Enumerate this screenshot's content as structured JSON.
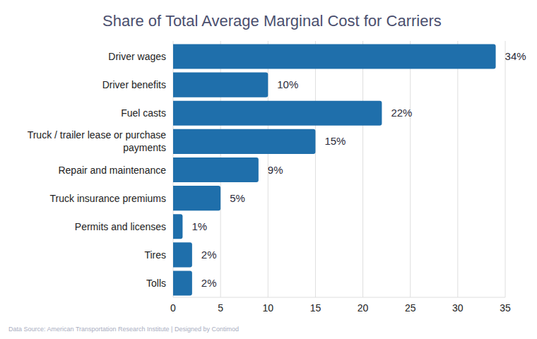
{
  "chart_data": {
    "type": "bar",
    "orientation": "horizontal",
    "title": "Share of Total Average Marginal Cost for Carriers",
    "source": "Data Source: American Transportation Research Institute | Designed by Contimod",
    "categories": [
      "Driver wages",
      "Driver benefits",
      "Fuel casts",
      "Truck / trailer lease or purchase payments",
      "Repair and maintenance",
      "Truck insurance premiums",
      "Permits and licenses",
      "Tires",
      "Tolls"
    ],
    "values": [
      34,
      10,
      22,
      15,
      9,
      5,
      1,
      2,
      2
    ],
    "value_labels": [
      "34%",
      "10%",
      "22%",
      "15%",
      "9%",
      "5%",
      "1%",
      "2%",
      "2%"
    ],
    "color": "#1f6fab",
    "xlim": [
      0,
      35
    ],
    "xticks": [
      0,
      5,
      10,
      15,
      20,
      25,
      30,
      35
    ],
    "grid": true,
    "data_labels": true
  }
}
